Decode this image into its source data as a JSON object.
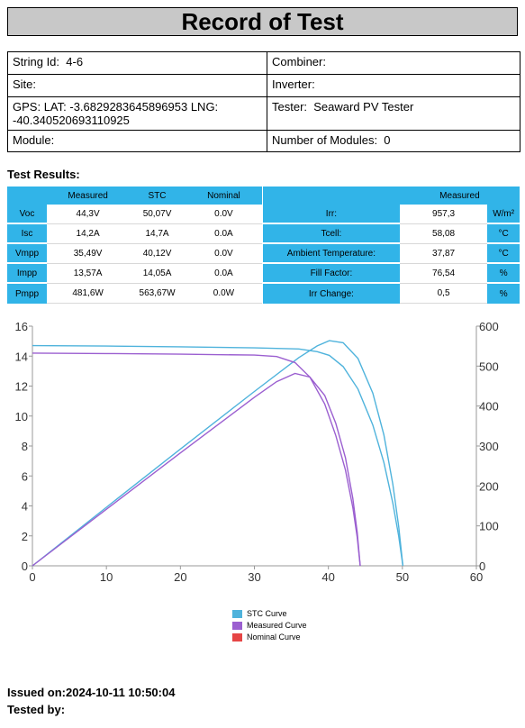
{
  "title": "Record of Test",
  "info": {
    "string_id_label": "String Id:",
    "string_id": "4-6",
    "combiner_label": "Combiner:",
    "site_label": "Site:",
    "inverter_label": "Inverter:",
    "gps_label": "GPS:",
    "gps_value": "LAT: -3.6829283645896953 LNG: -40.340520693110925",
    "tester_label": "Tester:",
    "tester_value": "Seaward PV Tester",
    "module_label": "Module:",
    "modules_label": "Number of Modules:",
    "modules_value": "0"
  },
  "results_title": "Test Results:",
  "results_table": {
    "headers": [
      "Measured",
      "STC",
      "Nominal"
    ],
    "rows": [
      {
        "label": "Voc",
        "measured": "44,3V",
        "stc": "50,07V",
        "nominal": "0.0V"
      },
      {
        "label": "Isc",
        "measured": "14,2A",
        "stc": "14,7A",
        "nominal": "0.0A"
      },
      {
        "label": "Vmpp",
        "measured": "35,49V",
        "stc": "40,12V",
        "nominal": "0.0V"
      },
      {
        "label": "Impp",
        "measured": "13,57A",
        "stc": "14,05A",
        "nominal": "0.0A"
      },
      {
        "label": "Pmpp",
        "measured": "481,6W",
        "stc": "563,67W",
        "nominal": "0.0W"
      }
    ]
  },
  "env_table": {
    "header": "Measured",
    "rows": [
      {
        "label": "Irr:",
        "value": "957,3",
        "unit": "W/m²"
      },
      {
        "label": "Tcell:",
        "value": "58,08",
        "unit": "°C"
      },
      {
        "label": "Ambient Temperature:",
        "value": "37,87",
        "unit": "°C"
      },
      {
        "label": "Fill Factor:",
        "value": "76,54",
        "unit": "%"
      },
      {
        "label": "Irr Change:",
        "value": "0,5",
        "unit": "%"
      }
    ]
  },
  "chart_data": {
    "type": "line",
    "x_ticks": [
      0,
      10,
      20,
      30,
      40,
      50,
      60
    ],
    "y_left_ticks": [
      0,
      2,
      4,
      6,
      8,
      10,
      12,
      14,
      16
    ],
    "y_right_ticks": [
      0,
      100,
      200,
      300,
      400,
      500,
      600
    ],
    "xlim": [
      0,
      60
    ],
    "ylim_left": [
      0,
      16
    ],
    "ylim_right": [
      0,
      600
    ],
    "series": [
      {
        "name": "STC Curve",
        "color": "#4fb3dc",
        "iv": [
          [
            0,
            14.7
          ],
          [
            10,
            14.67
          ],
          [
            20,
            14.62
          ],
          [
            30,
            14.55
          ],
          [
            36,
            14.48
          ],
          [
            38.5,
            14.3
          ],
          [
            40.12,
            14.05
          ],
          [
            42,
            13.3
          ],
          [
            44,
            11.8
          ],
          [
            46,
            9.4
          ],
          [
            47.5,
            6.9
          ],
          [
            48.7,
            4.2
          ],
          [
            49.5,
            2.0
          ],
          [
            50.07,
            0
          ]
        ],
        "pv": [
          [
            0,
            0
          ],
          [
            10,
            146.7
          ],
          [
            20,
            292.4
          ],
          [
            30,
            436.5
          ],
          [
            36,
            521.3
          ],
          [
            38.5,
            550.6
          ],
          [
            40.12,
            563.67
          ],
          [
            42,
            558.6
          ],
          [
            44,
            519.2
          ],
          [
            46,
            432.4
          ],
          [
            47.5,
            327.8
          ],
          [
            48.7,
            204.5
          ],
          [
            49.5,
            99
          ],
          [
            50.07,
            0
          ]
        ]
      },
      {
        "name": "Measured Curve",
        "color": "#9b5fd0",
        "iv": [
          [
            0,
            14.2
          ],
          [
            10,
            14.17
          ],
          [
            20,
            14.13
          ],
          [
            30,
            14.07
          ],
          [
            33,
            13.97
          ],
          [
            35.49,
            13.57
          ],
          [
            37.5,
            12.6
          ],
          [
            39.5,
            10.8
          ],
          [
            41,
            8.7
          ],
          [
            42.3,
            6.4
          ],
          [
            43.3,
            3.9
          ],
          [
            43.9,
            1.9
          ],
          [
            44.3,
            0
          ]
        ],
        "pv": [
          [
            0,
            0
          ],
          [
            10,
            141.7
          ],
          [
            20,
            282.6
          ],
          [
            30,
            422.1
          ],
          [
            33,
            461
          ],
          [
            35.49,
            481.6
          ],
          [
            37.5,
            472.5
          ],
          [
            39.5,
            426.6
          ],
          [
            41,
            356.7
          ],
          [
            42.3,
            270.7
          ],
          [
            43.3,
            168.9
          ],
          [
            43.9,
            83.4
          ],
          [
            44.3,
            0
          ]
        ]
      },
      {
        "name": "Nominal Curve",
        "color": "#e64545",
        "iv": [],
        "pv": []
      }
    ]
  },
  "issued_label": "Issued on:",
  "issued_value": "2024-10-11 10:50:04",
  "tested_by_label": "Tested by:"
}
